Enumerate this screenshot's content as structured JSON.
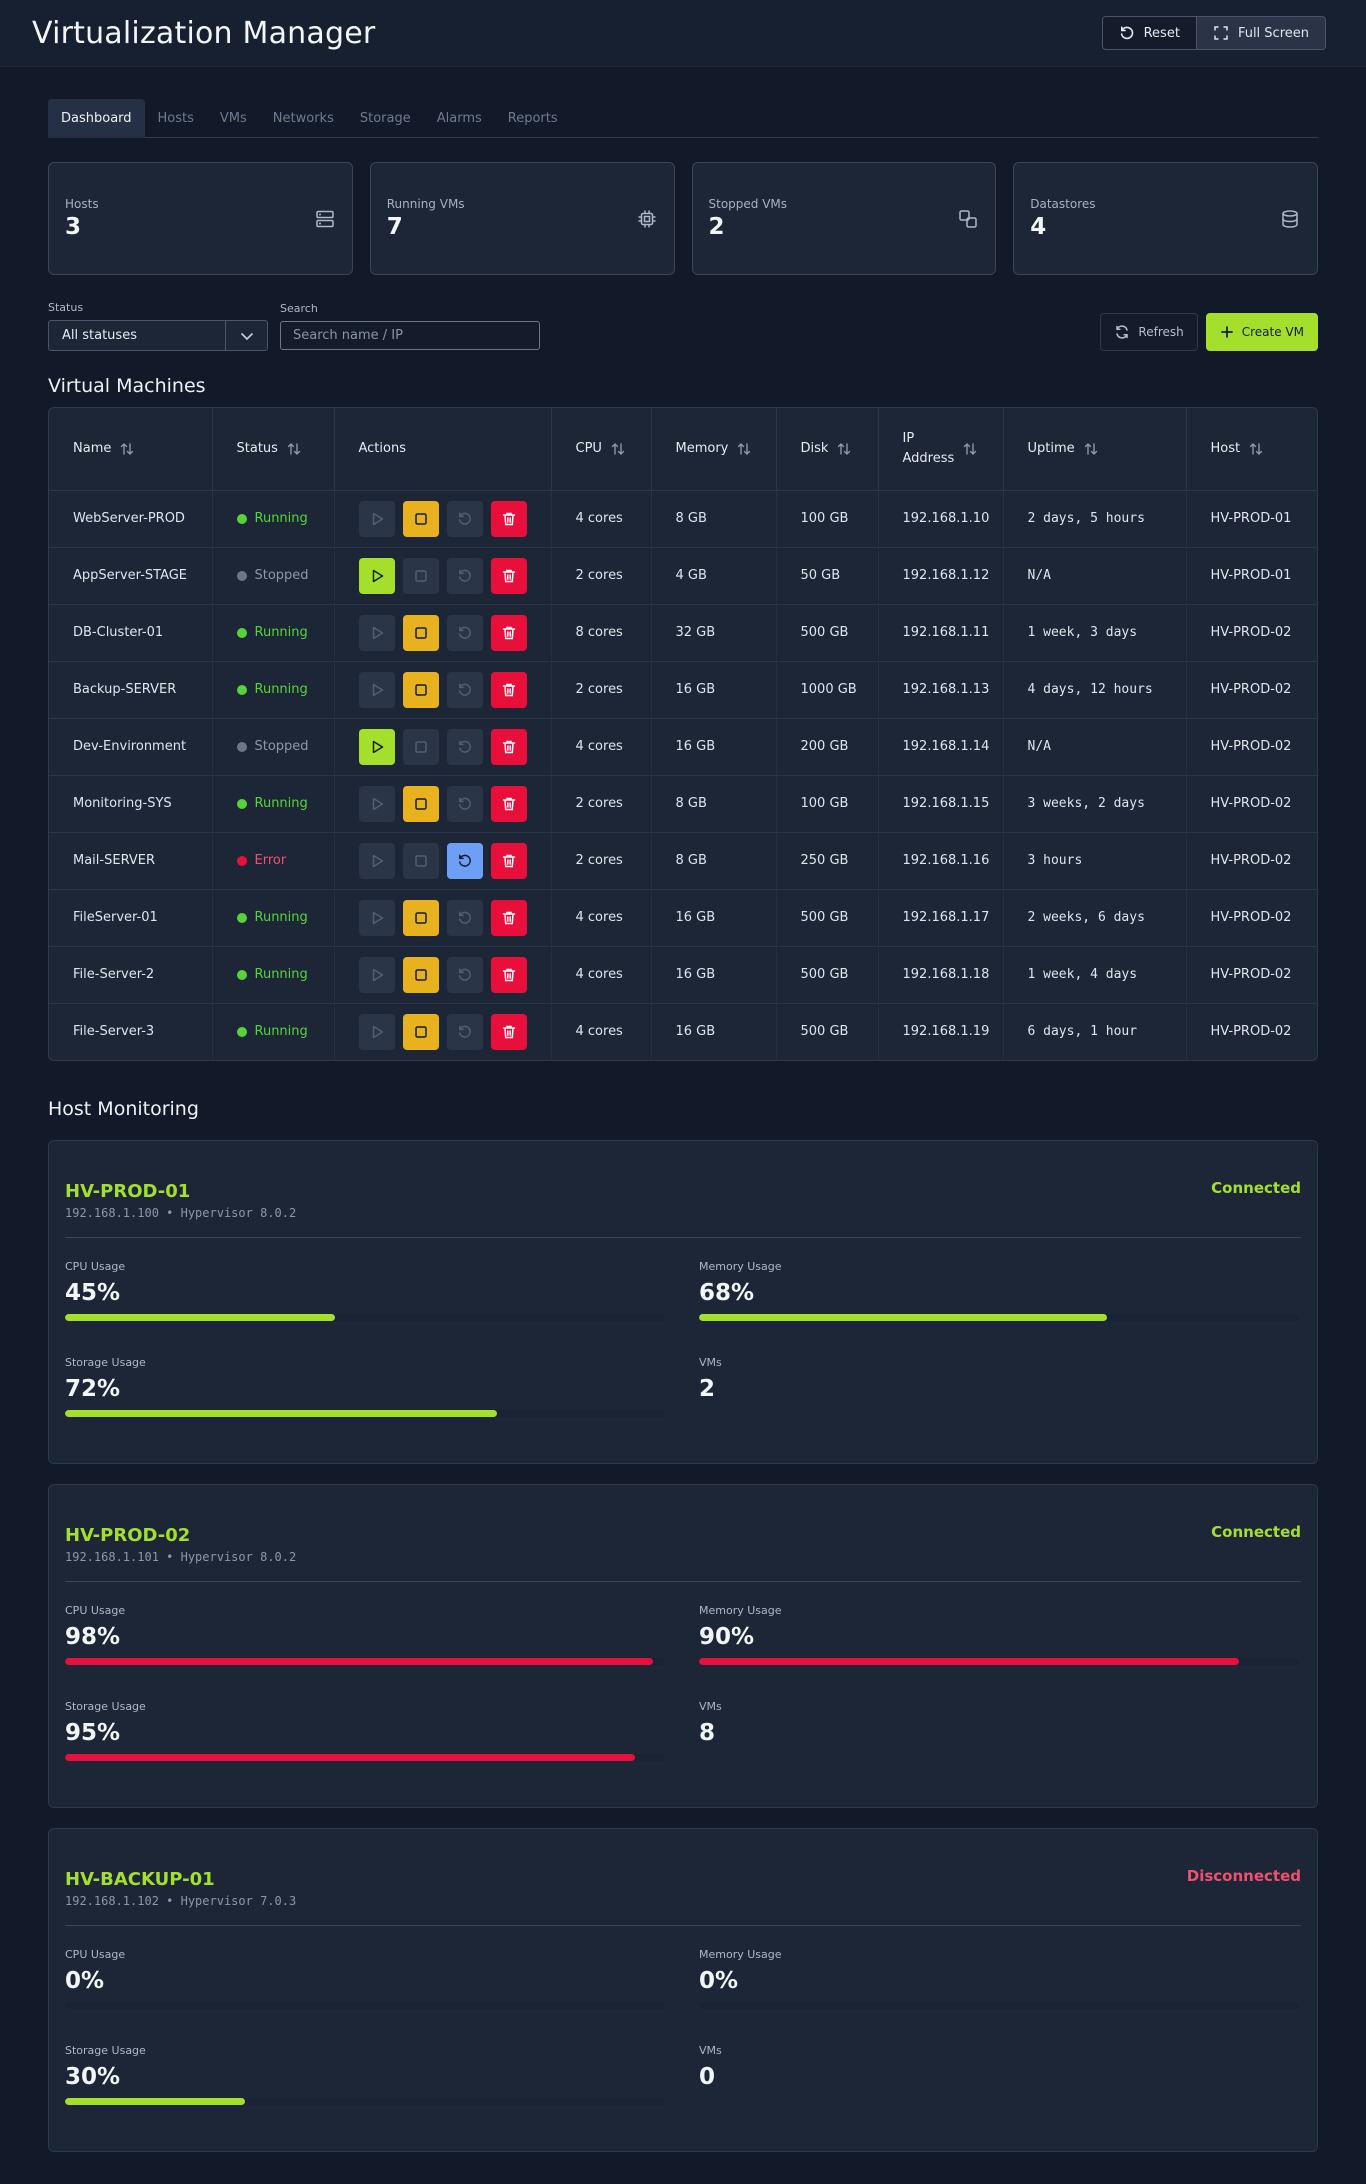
{
  "app": {
    "title": "Virtualization Manager",
    "reset_label": "Reset",
    "fullscreen_label": "Full Screen"
  },
  "tabs": [
    {
      "label": "Dashboard",
      "active": true
    },
    {
      "label": "Hosts",
      "active": false
    },
    {
      "label": "VMs",
      "active": false
    },
    {
      "label": "Networks",
      "active": false
    },
    {
      "label": "Storage",
      "active": false
    },
    {
      "label": "Alarms",
      "active": false
    },
    {
      "label": "Reports",
      "active": false
    }
  ],
  "stats": [
    {
      "label": "Hosts",
      "value": "3",
      "icon": "server-icon"
    },
    {
      "label": "Running VMs",
      "value": "7",
      "icon": "cpu-icon"
    },
    {
      "label": "Stopped VMs",
      "value": "2",
      "icon": "copy-icon"
    },
    {
      "label": "Datastores",
      "value": "4",
      "icon": "database-icon"
    }
  ],
  "filters": {
    "status_label": "Status",
    "status_value": "All statuses",
    "search_label": "Search",
    "search_placeholder": "Search name / IP",
    "refresh_label": "Refresh",
    "create_label": "Create VM"
  },
  "vm_section": {
    "title": "Virtual Machines",
    "columns": {
      "name": "Name",
      "status": "Status",
      "actions": "Actions",
      "cpu": "CPU",
      "memory": "Memory",
      "disk": "Disk",
      "ip_line1": "IP",
      "ip_line2": "Address",
      "uptime": "Uptime",
      "host": "Host"
    },
    "rows": [
      {
        "name": "WebServer-PROD",
        "status": "Running",
        "cpu": "4 cores",
        "memory": "8 GB",
        "disk": "100 GB",
        "ip": "192.168.1.10",
        "uptime": "2 days, 5 hours",
        "host": "HV-PROD-01"
      },
      {
        "name": "AppServer-STAGE",
        "status": "Stopped",
        "cpu": "2 cores",
        "memory": "4 GB",
        "disk": "50 GB",
        "ip": "192.168.1.12",
        "uptime": "N/A",
        "host": "HV-PROD-01"
      },
      {
        "name": "DB-Cluster-01",
        "status": "Running",
        "cpu": "8 cores",
        "memory": "32 GB",
        "disk": "500 GB",
        "ip": "192.168.1.11",
        "uptime": "1 week, 3 days",
        "host": "HV-PROD-02"
      },
      {
        "name": "Backup-SERVER",
        "status": "Running",
        "cpu": "2 cores",
        "memory": "16 GB",
        "disk": "1000 GB",
        "ip": "192.168.1.13",
        "uptime": "4 days, 12 hours",
        "host": "HV-PROD-02"
      },
      {
        "name": "Dev-Environment",
        "status": "Stopped",
        "cpu": "4 cores",
        "memory": "16 GB",
        "disk": "200 GB",
        "ip": "192.168.1.14",
        "uptime": "N/A",
        "host": "HV-PROD-02"
      },
      {
        "name": "Monitoring-SYS",
        "status": "Running",
        "cpu": "2 cores",
        "memory": "8 GB",
        "disk": "100 GB",
        "ip": "192.168.1.15",
        "uptime": "3 weeks, 2 days",
        "host": "HV-PROD-02"
      },
      {
        "name": "Mail-SERVER",
        "status": "Error",
        "cpu": "2 cores",
        "memory": "8 GB",
        "disk": "250 GB",
        "ip": "192.168.1.16",
        "uptime": "3 hours",
        "host": "HV-PROD-02"
      },
      {
        "name": "FileServer-01",
        "status": "Running",
        "cpu": "4 cores",
        "memory": "16 GB",
        "disk": "500 GB",
        "ip": "192.168.1.17",
        "uptime": "2 weeks, 6 days",
        "host": "HV-PROD-02"
      },
      {
        "name": "File-Server-2",
        "status": "Running",
        "cpu": "4 cores",
        "memory": "16 GB",
        "disk": "500 GB",
        "ip": "192.168.1.18",
        "uptime": "1 week, 4 days",
        "host": "HV-PROD-02"
      },
      {
        "name": "File-Server-3",
        "status": "Running",
        "cpu": "4 cores",
        "memory": "16 GB",
        "disk": "500 GB",
        "ip": "192.168.1.19",
        "uptime": "6 days, 1 hour",
        "host": "HV-PROD-02"
      }
    ]
  },
  "host_section": {
    "title": "Host Monitoring",
    "labels": {
      "cpu": "CPU Usage",
      "memory": "Memory Usage",
      "storage": "Storage Usage",
      "vms": "VMs"
    },
    "hosts": [
      {
        "name": "HV-PROD-01",
        "meta": "192.168.1.100 • Hypervisor 8.0.2",
        "status": "Connected",
        "cpu": 45,
        "memory": 68,
        "storage": 72,
        "vms": "2"
      },
      {
        "name": "HV-PROD-02",
        "meta": "192.168.1.101 • Hypervisor 8.0.2",
        "status": "Connected",
        "cpu": 98,
        "memory": 90,
        "storage": 95,
        "vms": "8"
      },
      {
        "name": "HV-BACKUP-01",
        "meta": "192.168.1.102 • Hypervisor 7.0.3",
        "status": "Disconnected",
        "cpu": 0,
        "memory": 0,
        "storage": 30,
        "vms": "0"
      }
    ]
  },
  "colors": {
    "accent": "#a4e02b",
    "running": "#59d23a",
    "stopped": "#6b7789",
    "error": "#e8103a",
    "error_text": "#f0506e",
    "warning": "#e7b21e",
    "info": "#6e9ff7",
    "critical_bar": "#e8103a"
  }
}
